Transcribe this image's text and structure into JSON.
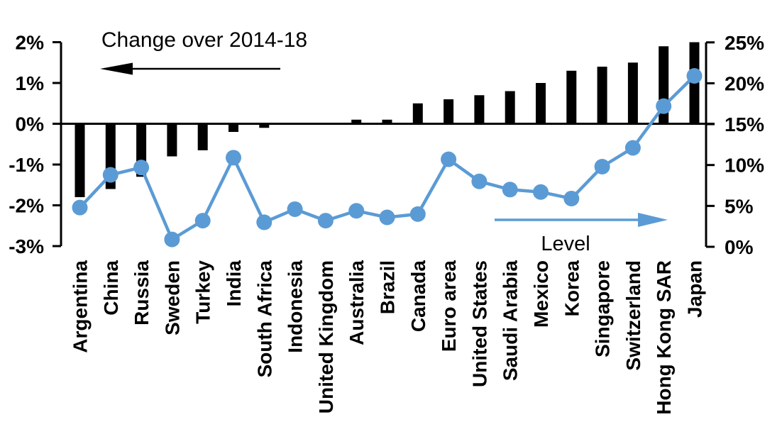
{
  "chart_data": {
    "type": "bar",
    "subtype": "combo-bar-line-dual-axis",
    "title": "",
    "background": "#FFFFFF",
    "grid": false,
    "categories": [
      "Argentina",
      "China",
      "Russia",
      "Sweden",
      "Turkey",
      "India",
      "South Africa",
      "Indonesia",
      "United Kingdom",
      "Australia",
      "Brazil",
      "Canada",
      "Euro area",
      "United States",
      "Saudi Arabia",
      "Mexico",
      "Korea",
      "Singapore",
      "Switzerland",
      "Hong Kong SAR",
      "Japan"
    ],
    "series": [
      {
        "name": "Change over 2014-18",
        "type": "bar",
        "axis": "left",
        "color": "#000000",
        "values": [
          -1.8,
          -1.6,
          -1.3,
          -0.8,
          -0.65,
          -0.2,
          -0.1,
          0,
          0,
          0.1,
          0.1,
          0.5,
          0.6,
          0.7,
          0.8,
          1.0,
          1.3,
          1.4,
          1.5,
          1.9,
          2.0
        ]
      },
      {
        "name": "Level",
        "type": "line",
        "axis": "right",
        "color": "#5B9BD5",
        "values": [
          4.8,
          8.8,
          9.7,
          0.9,
          3.2,
          10.9,
          3.0,
          4.6,
          3.2,
          4.4,
          3.6,
          4.0,
          10.7,
          8.0,
          7.0,
          6.7,
          5.9,
          9.8,
          12.1,
          17.2,
          20.9
        ]
      }
    ],
    "left_axis": {
      "min": -3,
      "max": 2,
      "tick_values": [
        2,
        1,
        0,
        -1,
        -2,
        -3
      ],
      "tick_labels": [
        "2%",
        "1%",
        "0%",
        "-1%",
        "-2%",
        "-3%"
      ],
      "unit": "%"
    },
    "right_axis": {
      "min": 0,
      "max": 25,
      "tick_values": [
        25,
        20,
        15,
        10,
        5,
        0
      ],
      "tick_labels": [
        "25%",
        "20%",
        "15%",
        "10%",
        "5%",
        "0%"
      ],
      "unit": "%"
    },
    "annotations": {
      "change": {
        "text": "Change over 2014-18",
        "arrow_direction": "left",
        "arrow_color": "#000000"
      },
      "level": {
        "text": "Level",
        "arrow_direction": "right",
        "arrow_color": "#5B9BD5"
      }
    },
    "legend_position": "none"
  }
}
